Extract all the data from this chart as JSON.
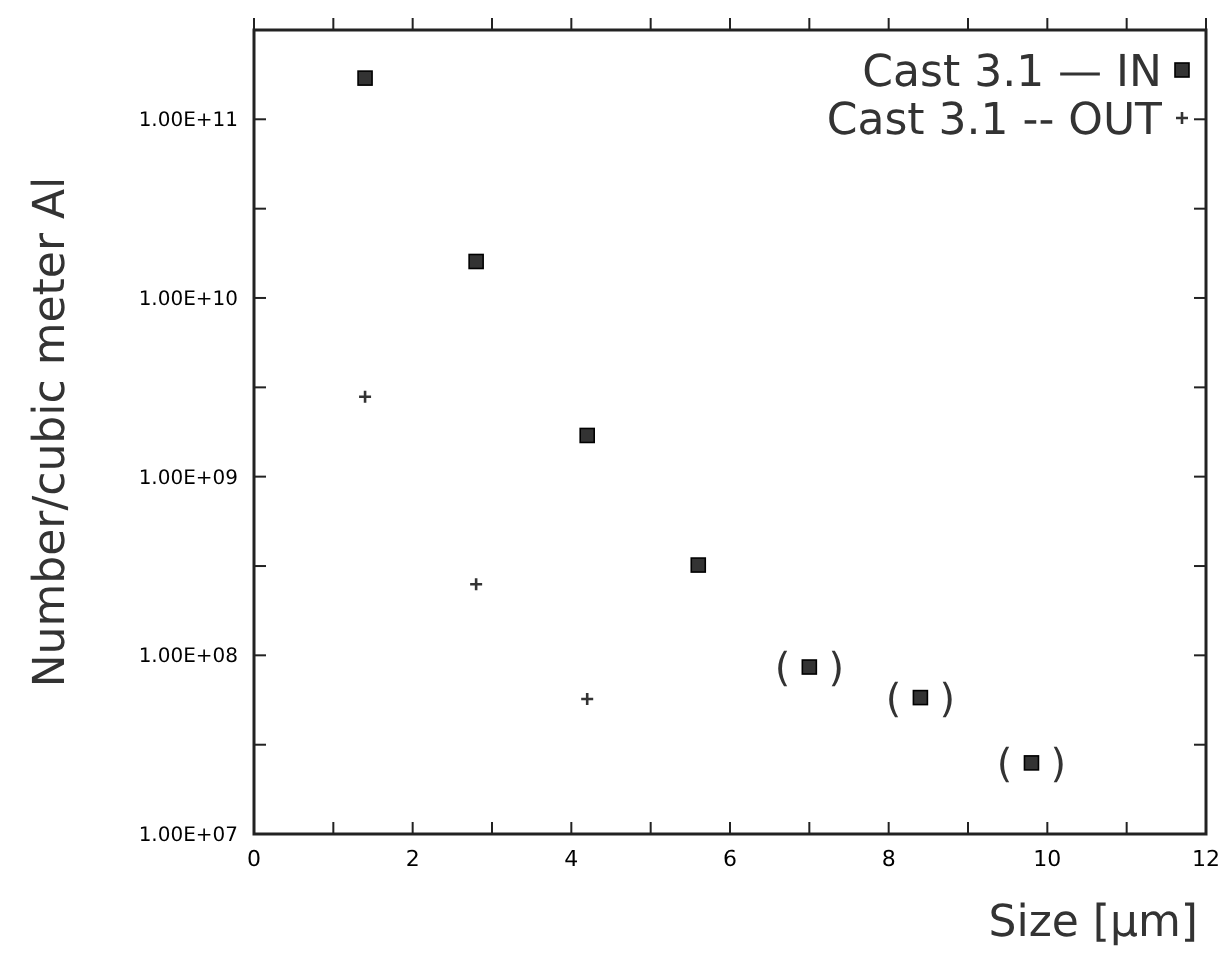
{
  "chart_data": {
    "type": "scatter",
    "xlabel": "Size [µm]",
    "ylabel": "Number/cubic meter Al",
    "log": "y",
    "xlim": [
      0,
      12
    ],
    "ylim": [
      10000000,
      316000000000
    ],
    "xticks": [
      0,
      {
        "value": 1,
        "label": null
      },
      2,
      {
        "value": 3,
        "label": null
      },
      4,
      {
        "value": 5,
        "label": null
      },
      6,
      {
        "value": 7,
        "label": null
      },
      8,
      {
        "value": 9,
        "label": null
      },
      10,
      {
        "value": 11,
        "label": null
      },
      12
    ],
    "yticks": [
      {
        "value": 10000000,
        "label": "1.00E+07"
      },
      {
        "value": 31600000,
        "label": null
      },
      {
        "value": 100000000,
        "label": "1.00E+08"
      },
      {
        "value": 316000000,
        "label": null
      },
      {
        "value": 1000000000,
        "label": "1.00E+09"
      },
      {
        "value": 3160000000,
        "label": null
      },
      {
        "value": 10000000000,
        "label": "1.00E+10"
      },
      {
        "value": 31600000000,
        "label": null
      },
      {
        "value": 100000000000,
        "label": "1.00E+11"
      },
      {
        "value": 316000000000,
        "label": null
      }
    ],
    "series": [
      {
        "name": "Cast 3.1 — IN",
        "color": "#333333",
        "marker": "square",
        "x": [
          1.4,
          2.8,
          4.2,
          5.6,
          7.0,
          8.4,
          9.8
        ],
        "values": [
          170000000000,
          16000000000,
          1700000000,
          320000000,
          86000000,
          58000000,
          25000000
        ]
      },
      {
        "name": "Cast 3.1 -- OUT",
        "color": "#333333",
        "marker": "cross",
        "x": [
          1.4,
          2.8,
          4.2
        ],
        "values": [
          2800000000,
          250000000,
          57000000
        ]
      }
    ],
    "annotations": [
      {
        "text": "(   )",
        "x": 7.0,
        "y": 86000000
      },
      {
        "text": "(   )",
        "x": 8.4,
        "y": 58000000
      },
      {
        "text": "(   )",
        "x": 9.8,
        "y": 25000000
      }
    ],
    "legend": "top right",
    "grid": false
  }
}
